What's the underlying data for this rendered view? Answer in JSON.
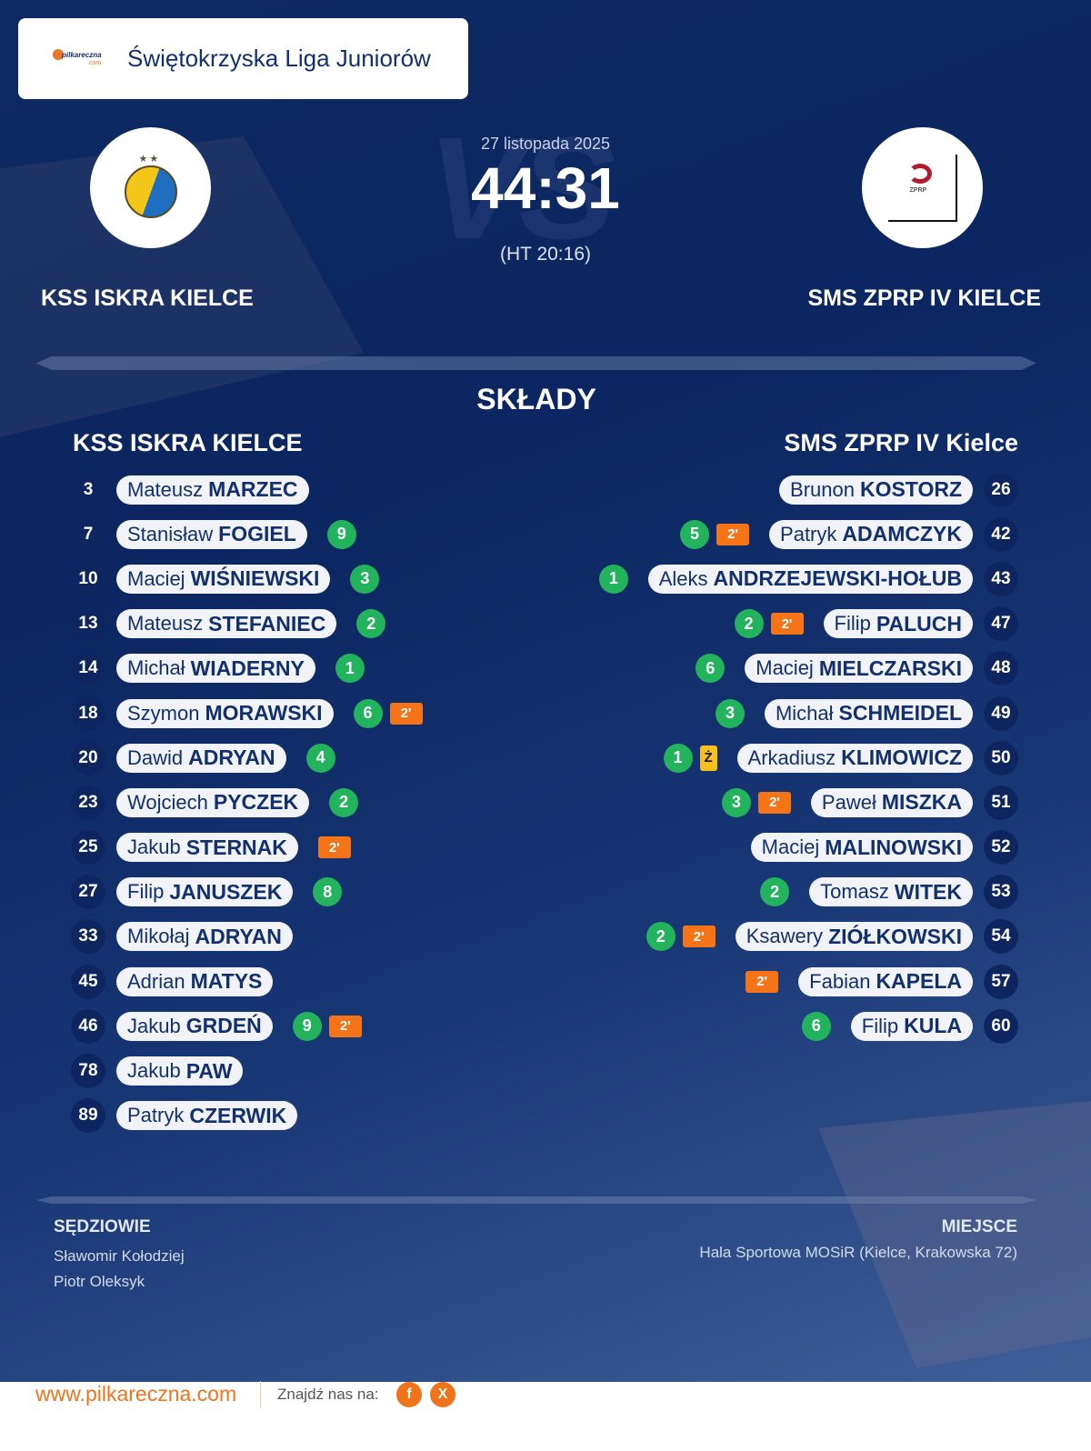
{
  "league": {
    "logo_text": "pilkareczna",
    "logo_sub": ".com",
    "title": "Świętokrzyska Liga Juniorów"
  },
  "match": {
    "vs_watermark": "VS",
    "date": "27 listopada 2025",
    "score": "44:31",
    "halftime": "(HT 20:16)",
    "home_team": "KSS ISKRA KIELCE",
    "away_team": "SMS ZPRP IV KIELCE"
  },
  "lineups": {
    "title": "SKŁADY",
    "home": {
      "name": "KSS ISKRA KIELCE",
      "players": [
        {
          "number": "3",
          "first": "Mateusz",
          "last": "MARZEC",
          "goals": "",
          "suspension": "",
          "yellow": ""
        },
        {
          "number": "7",
          "first": "Stanisław",
          "last": "FOGIEL",
          "goals": "9",
          "suspension": "",
          "yellow": ""
        },
        {
          "number": "10",
          "first": "Maciej",
          "last": "WIŚNIEWSKI",
          "goals": "3",
          "suspension": "",
          "yellow": ""
        },
        {
          "number": "13",
          "first": "Mateusz",
          "last": "STEFANIEC",
          "goals": "2",
          "suspension": "",
          "yellow": ""
        },
        {
          "number": "14",
          "first": "Michał",
          "last": "WIADERNY",
          "goals": "1",
          "suspension": "",
          "yellow": ""
        },
        {
          "number": "18",
          "first": "Szymon",
          "last": "MORAWSKI",
          "goals": "6",
          "suspension": "2'",
          "yellow": ""
        },
        {
          "number": "20",
          "first": "Dawid",
          "last": "ADRYAN",
          "goals": "4",
          "suspension": "",
          "yellow": ""
        },
        {
          "number": "23",
          "first": "Wojciech",
          "last": "PYCZEK",
          "goals": "2",
          "suspension": "",
          "yellow": ""
        },
        {
          "number": "25",
          "first": "Jakub",
          "last": "STERNAK",
          "goals": "",
          "suspension": "2'",
          "yellow": ""
        },
        {
          "number": "27",
          "first": "Filip",
          "last": "JANUSZEK",
          "goals": "8",
          "suspension": "",
          "yellow": ""
        },
        {
          "number": "33",
          "first": "Mikołaj",
          "last": "ADRYAN",
          "goals": "",
          "suspension": "",
          "yellow": ""
        },
        {
          "number": "45",
          "first": "Adrian",
          "last": "MATYS",
          "goals": "",
          "suspension": "",
          "yellow": ""
        },
        {
          "number": "46",
          "first": "Jakub",
          "last": "GRDEŃ",
          "goals": "9",
          "suspension": "2'",
          "yellow": ""
        },
        {
          "number": "78",
          "first": "Jakub",
          "last": "PAW",
          "goals": "",
          "suspension": "",
          "yellow": ""
        },
        {
          "number": "89",
          "first": "Patryk",
          "last": "CZERWIK",
          "goals": "",
          "suspension": "",
          "yellow": ""
        }
      ]
    },
    "away": {
      "name": "SMS ZPRP IV Kielce",
      "players": [
        {
          "number": "26",
          "first": "Brunon",
          "last": "KOSTORZ",
          "goals": "",
          "suspension": "",
          "yellow": ""
        },
        {
          "number": "42",
          "first": "Patryk",
          "last": "ADAMCZYK",
          "goals": "5",
          "suspension": "2'",
          "yellow": ""
        },
        {
          "number": "43",
          "first": "Aleks",
          "last": "ANDRZEJEWSKI-HOŁUB",
          "goals": "1",
          "suspension": "",
          "yellow": ""
        },
        {
          "number": "47",
          "first": "Filip",
          "last": "PALUCH",
          "goals": "2",
          "suspension": "2'",
          "yellow": ""
        },
        {
          "number": "48",
          "first": "Maciej",
          "last": "MIELCZARSKI",
          "goals": "6",
          "suspension": "",
          "yellow": ""
        },
        {
          "number": "49",
          "first": "Michał",
          "last": "SCHMEIDEL",
          "goals": "3",
          "suspension": "",
          "yellow": ""
        },
        {
          "number": "50",
          "first": "Arkadiusz",
          "last": "KLIMOWICZ",
          "goals": "1",
          "suspension": "",
          "yellow": "Ż"
        },
        {
          "number": "51",
          "first": "Paweł",
          "last": "MISZKA",
          "goals": "3",
          "suspension": "2'",
          "yellow": ""
        },
        {
          "number": "52",
          "first": "Maciej",
          "last": "MALINOWSKI",
          "goals": "",
          "suspension": "",
          "yellow": ""
        },
        {
          "number": "53",
          "first": "Tomasz",
          "last": "WITEK",
          "goals": "2",
          "suspension": "",
          "yellow": ""
        },
        {
          "number": "54",
          "first": "Ksawery",
          "last": "ZIÓŁKOWSKI",
          "goals": "2",
          "suspension": "2'",
          "yellow": ""
        },
        {
          "number": "57",
          "first": "Fabian",
          "last": "KAPELA",
          "goals": "",
          "suspension": "2'",
          "yellow": ""
        },
        {
          "number": "60",
          "first": "Filip",
          "last": "KULA",
          "goals": "6",
          "suspension": "",
          "yellow": ""
        }
      ]
    }
  },
  "officials": {
    "referees_title": "SĘDZIOWIE",
    "referees": [
      "Sławomir Kołodziej",
      "Piotr Oleksyk"
    ],
    "venue_title": "MIEJSCE",
    "venue": "Hala Sportowa MOSiR (Kielce, Krakowska 72)"
  },
  "footer": {
    "site": "www.pilkareczna.com",
    "find_us": "Znajdź nas na:",
    "social": [
      {
        "name": "facebook-icon",
        "glyph": "f"
      },
      {
        "name": "x-icon",
        "glyph": "X"
      }
    ]
  },
  "colors": {
    "background": "#0b2660",
    "goal_badge": "#22b35c",
    "suspension_badge": "#f57418",
    "yellow_card": "#f7c01d",
    "brand_orange": "#f0731c",
    "text_dark": "#12306d"
  }
}
